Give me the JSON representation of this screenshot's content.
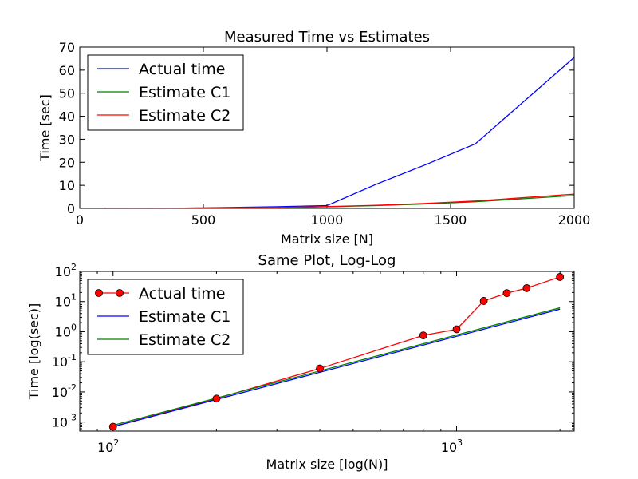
{
  "chart_data": [
    {
      "type": "line",
      "title": "Measured Time vs Estimates",
      "xlabel": "Matrix size [N]",
      "ylabel": "Time [sec]",
      "xlim": [
        0,
        2000
      ],
      "ylim": [
        0,
        70
      ],
      "xticks": [
        0,
        500,
        1000,
        1500,
        2000
      ],
      "yticks": [
        0,
        10,
        20,
        30,
        40,
        50,
        60,
        70
      ],
      "legend_position": "top-left",
      "series": [
        {
          "name": "Actual time",
          "color": "#0000ff",
          "x": [
            100,
            200,
            400,
            800,
            1000,
            1200,
            1400,
            1600,
            2000
          ],
          "y": [
            0.0007,
            0.006,
            0.06,
            0.75,
            1.2,
            10.5,
            19,
            28,
            65.5
          ]
        },
        {
          "name": "Estimate C1",
          "color": "#008000",
          "x": [
            100,
            200,
            400,
            800,
            1000,
            1200,
            1400,
            1600,
            2000
          ],
          "y": [
            0.0007,
            0.0056,
            0.045,
            0.36,
            0.7,
            1.21,
            1.92,
            2.87,
            5.6
          ]
        },
        {
          "name": "Estimate C2",
          "color": "#ff0000",
          "x": [
            100,
            200,
            400,
            800,
            1000,
            1200,
            1400,
            1600,
            2000
          ],
          "y": [
            0.00078,
            0.0062,
            0.05,
            0.4,
            0.78,
            1.35,
            2.14,
            3.19,
            6.2
          ]
        }
      ]
    },
    {
      "type": "line",
      "title": "Same Plot, Log-Log",
      "xlabel": "Matrix size [log(N)]",
      "ylabel": "Time [log(sec)]",
      "xscale": "log",
      "yscale": "log",
      "xlim": [
        80,
        2200
      ],
      "ylim": [
        0.0005,
        100
      ],
      "xticks": [
        {
          "base": "10",
          "exp": "2",
          "value": 100
        },
        {
          "base": "10",
          "exp": "3",
          "value": 1000
        }
      ],
      "yticks": [
        {
          "base": "10",
          "exp": "-3",
          "value": 0.001
        },
        {
          "base": "10",
          "exp": "-2",
          "value": 0.01
        },
        {
          "base": "10",
          "exp": "-1",
          "value": 0.1
        },
        {
          "base": "10",
          "exp": "0",
          "value": 1
        },
        {
          "base": "10",
          "exp": "1",
          "value": 10
        },
        {
          "base": "10",
          "exp": "2",
          "value": 100
        }
      ],
      "legend_position": "top-left",
      "series": [
        {
          "name": "Actual time",
          "color": "#ff0000",
          "marker": "circle",
          "x": [
            100,
            200,
            400,
            800,
            1000,
            1200,
            1400,
            1600,
            2000
          ],
          "y": [
            0.0007,
            0.006,
            0.06,
            0.75,
            1.2,
            10.5,
            19,
            28,
            65.5
          ]
        },
        {
          "name": "Estimate C1",
          "color": "#0000ff",
          "x": [
            100,
            2000
          ],
          "y": [
            0.0007,
            5.6
          ]
        },
        {
          "name": "Estimate C2",
          "color": "#008000",
          "x": [
            100,
            2000
          ],
          "y": [
            0.00078,
            6.2
          ]
        }
      ]
    }
  ]
}
